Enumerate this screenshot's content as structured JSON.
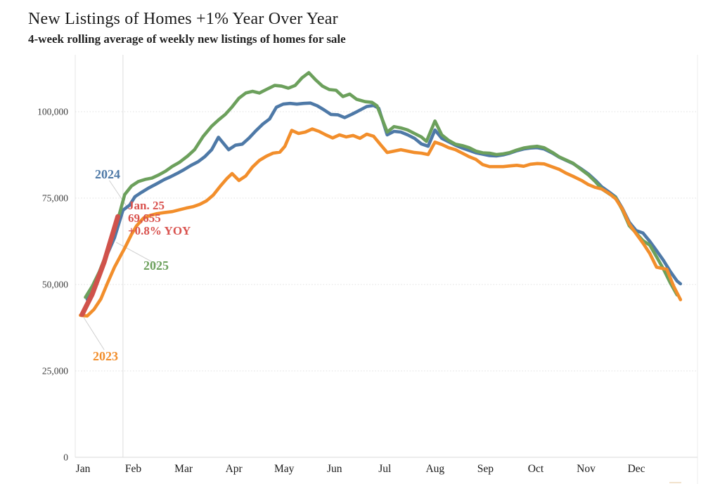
{
  "header": {
    "title": "New Listings of Homes +1% Year Over Year",
    "subtitle": "4-week rolling average of weekly new listings of homes for sale"
  },
  "chart_data": {
    "type": "line",
    "title": "New Listings of Homes +1% Year Over Year",
    "subtitle": "4-week rolling average of weekly new listings of homes for sale",
    "xlabel": "",
    "ylabel": "",
    "x_unit": "day of year",
    "ylim": [
      0,
      115000
    ],
    "grid": "horizontal-dotted",
    "y_ticks": [
      0,
      25000,
      50000,
      75000,
      100000
    ],
    "y_tick_labels": [
      "0",
      "25,000",
      "50,000",
      "75,000",
      "100,000"
    ],
    "month_labels": [
      "Jan",
      "Feb",
      "Mar",
      "Apr",
      "May",
      "Jun",
      "Jul",
      "Aug",
      "Sep",
      "Oct",
      "Nov",
      "Dec"
    ],
    "latest_marker_day": 28,
    "series": [
      {
        "name": "2024",
        "color": "#4E79A7",
        "points": [
          [
            7,
            45700
          ],
          [
            11,
            50300
          ],
          [
            15,
            54500
          ],
          [
            19,
            59000
          ],
          [
            23,
            63500
          ],
          [
            28,
            71500
          ],
          [
            32,
            73000
          ],
          [
            35,
            75400
          ],
          [
            39,
            76700
          ],
          [
            43,
            77900
          ],
          [
            48,
            79200
          ],
          [
            52,
            80300
          ],
          [
            56,
            81200
          ],
          [
            60,
            82200
          ],
          [
            64,
            83300
          ],
          [
            68,
            84500
          ],
          [
            72,
            85500
          ],
          [
            76,
            87000
          ],
          [
            80,
            89000
          ],
          [
            84,
            92600
          ],
          [
            90,
            89000
          ],
          [
            94,
            90300
          ],
          [
            98,
            90600
          ],
          [
            102,
            92400
          ],
          [
            106,
            94500
          ],
          [
            110,
            96400
          ],
          [
            114,
            97900
          ],
          [
            118,
            101300
          ],
          [
            122,
            102200
          ],
          [
            126,
            102400
          ],
          [
            130,
            102200
          ],
          [
            134,
            102400
          ],
          [
            138,
            102500
          ],
          [
            142,
            101700
          ],
          [
            146,
            100500
          ],
          [
            150,
            99200
          ],
          [
            154,
            99100
          ],
          [
            158,
            98300
          ],
          [
            162,
            99200
          ],
          [
            166,
            100200
          ],
          [
            171,
            101500
          ],
          [
            175,
            101800
          ],
          [
            178,
            101000
          ],
          [
            183,
            93300
          ],
          [
            187,
            94300
          ],
          [
            191,
            94100
          ],
          [
            195,
            93300
          ],
          [
            199,
            92300
          ],
          [
            203,
            90700
          ],
          [
            207,
            90000
          ],
          [
            211,
            94700
          ],
          [
            215,
            92300
          ],
          [
            219,
            91300
          ],
          [
            223,
            90300
          ],
          [
            227,
            89500
          ],
          [
            231,
            88800
          ],
          [
            235,
            88100
          ],
          [
            239,
            87700
          ],
          [
            243,
            87300
          ],
          [
            247,
            87200
          ],
          [
            251,
            87500
          ],
          [
            255,
            88000
          ],
          [
            259,
            88700
          ],
          [
            263,
            89200
          ],
          [
            267,
            89500
          ],
          [
            271,
            89600
          ],
          [
            275,
            89200
          ],
          [
            280,
            88000
          ],
          [
            284,
            86800
          ],
          [
            288,
            85900
          ],
          [
            292,
            85000
          ],
          [
            297,
            83400
          ],
          [
            301,
            82000
          ],
          [
            305,
            80200
          ],
          [
            309,
            78200
          ],
          [
            313,
            76800
          ],
          [
            317,
            75300
          ],
          [
            321,
            72000
          ],
          [
            325,
            68000
          ],
          [
            329,
            65600
          ],
          [
            333,
            64900
          ],
          [
            337,
            62500
          ],
          [
            341,
            59800
          ],
          [
            345,
            57000
          ],
          [
            349,
            53800
          ],
          [
            353,
            51000
          ],
          [
            355,
            50200
          ]
        ]
      },
      {
        "name": "2025",
        "color": "#6CA05C",
        "points": [
          [
            6,
            46300
          ],
          [
            10,
            49500
          ],
          [
            14,
            53500
          ],
          [
            18,
            58500
          ],
          [
            22,
            64000
          ],
          [
            26,
            70500
          ],
          [
            29,
            76000
          ],
          [
            33,
            78500
          ],
          [
            37,
            79800
          ],
          [
            41,
            80400
          ],
          [
            45,
            80800
          ],
          [
            49,
            81700
          ],
          [
            53,
            82800
          ],
          [
            57,
            84200
          ],
          [
            61,
            85300
          ],
          [
            66,
            87200
          ],
          [
            70,
            89000
          ],
          [
            75,
            92800
          ],
          [
            80,
            95800
          ],
          [
            84,
            97600
          ],
          [
            88,
            99200
          ],
          [
            92,
            101400
          ],
          [
            96,
            103900
          ],
          [
            100,
            105400
          ],
          [
            104,
            105900
          ],
          [
            108,
            105400
          ],
          [
            112,
            106400
          ],
          [
            117,
            107600
          ],
          [
            121,
            107400
          ],
          [
            125,
            106800
          ],
          [
            129,
            107600
          ],
          [
            133,
            109800
          ],
          [
            137,
            111300
          ],
          [
            141,
            109200
          ],
          [
            145,
            107400
          ],
          [
            149,
            106400
          ],
          [
            153,
            106200
          ],
          [
            157,
            104400
          ],
          [
            161,
            105100
          ],
          [
            165,
            103600
          ],
          [
            170,
            102900
          ],
          [
            174,
            102700
          ],
          [
            177,
            101700
          ],
          [
            183,
            94100
          ],
          [
            187,
            95700
          ],
          [
            191,
            95300
          ],
          [
            195,
            94700
          ],
          [
            199,
            93700
          ],
          [
            203,
            92700
          ],
          [
            206,
            91400
          ],
          [
            211,
            97300
          ],
          [
            215,
            93300
          ],
          [
            219,
            91700
          ],
          [
            223,
            90600
          ],
          [
            227,
            90200
          ],
          [
            231,
            89600
          ],
          [
            235,
            88600
          ],
          [
            239,
            88100
          ],
          [
            243,
            88000
          ],
          [
            247,
            87600
          ],
          [
            251,
            87800
          ],
          [
            255,
            88200
          ],
          [
            259,
            88900
          ],
          [
            263,
            89500
          ],
          [
            267,
            89800
          ],
          [
            271,
            90000
          ],
          [
            275,
            89600
          ],
          [
            280,
            88200
          ],
          [
            284,
            86900
          ],
          [
            288,
            86000
          ],
          [
            292,
            85100
          ],
          [
            297,
            83200
          ],
          [
            301,
            81700
          ],
          [
            305,
            79800
          ],
          [
            309,
            77600
          ],
          [
            313,
            76300
          ],
          [
            317,
            75100
          ],
          [
            321,
            71500
          ],
          [
            325,
            67000
          ],
          [
            329,
            64900
          ],
          [
            333,
            62700
          ],
          [
            337,
            61400
          ],
          [
            341,
            58000
          ],
          [
            345,
            54500
          ],
          [
            349,
            50500
          ],
          [
            353,
            47000
          ]
        ]
      },
      {
        "name": "2023",
        "color": "#F28E2B",
        "points": [
          [
            3,
            41100
          ],
          [
            7,
            40900
          ],
          [
            11,
            42800
          ],
          [
            15,
            45800
          ],
          [
            19,
            50500
          ],
          [
            23,
            55000
          ],
          [
            27,
            58700
          ],
          [
            29,
            60500
          ],
          [
            33,
            64500
          ],
          [
            36,
            67000
          ],
          [
            40,
            69200
          ],
          [
            44,
            70000
          ],
          [
            48,
            70500
          ],
          [
            52,
            70800
          ],
          [
            57,
            71100
          ],
          [
            61,
            71600
          ],
          [
            65,
            72100
          ],
          [
            69,
            72500
          ],
          [
            73,
            73200
          ],
          [
            77,
            74200
          ],
          [
            81,
            75900
          ],
          [
            85,
            78400
          ],
          [
            89,
            80700
          ],
          [
            92,
            82100
          ],
          [
            96,
            80100
          ],
          [
            100,
            81400
          ],
          [
            104,
            84000
          ],
          [
            108,
            85900
          ],
          [
            112,
            87100
          ],
          [
            116,
            88000
          ],
          [
            120,
            88300
          ],
          [
            123,
            90000
          ],
          [
            127,
            94600
          ],
          [
            131,
            93700
          ],
          [
            135,
            94100
          ],
          [
            139,
            95000
          ],
          [
            143,
            94300
          ],
          [
            147,
            93300
          ],
          [
            151,
            92400
          ],
          [
            155,
            93300
          ],
          [
            159,
            92700
          ],
          [
            163,
            93100
          ],
          [
            167,
            92300
          ],
          [
            171,
            93500
          ],
          [
            175,
            92900
          ],
          [
            179,
            90500
          ],
          [
            183,
            88200
          ],
          [
            187,
            88600
          ],
          [
            191,
            89000
          ],
          [
            195,
            88600
          ],
          [
            199,
            88200
          ],
          [
            203,
            88000
          ],
          [
            207,
            87600
          ],
          [
            211,
            91200
          ],
          [
            215,
            90500
          ],
          [
            219,
            89600
          ],
          [
            223,
            89000
          ],
          [
            227,
            88000
          ],
          [
            231,
            87000
          ],
          [
            235,
            86200
          ],
          [
            239,
            84700
          ],
          [
            243,
            84100
          ],
          [
            247,
            84100
          ],
          [
            251,
            84100
          ],
          [
            255,
            84300
          ],
          [
            259,
            84500
          ],
          [
            263,
            84200
          ],
          [
            267,
            84800
          ],
          [
            271,
            85000
          ],
          [
            275,
            84900
          ],
          [
            280,
            84000
          ],
          [
            284,
            83300
          ],
          [
            288,
            82200
          ],
          [
            292,
            81300
          ],
          [
            297,
            80100
          ],
          [
            301,
            78900
          ],
          [
            305,
            78100
          ],
          [
            309,
            77600
          ],
          [
            313,
            76400
          ],
          [
            317,
            74800
          ],
          [
            321,
            71800
          ],
          [
            325,
            67500
          ],
          [
            329,
            64700
          ],
          [
            333,
            62000
          ],
          [
            337,
            59000
          ],
          [
            341,
            55000
          ],
          [
            344,
            54700
          ],
          [
            347,
            54400
          ],
          [
            351,
            49500
          ],
          [
            355,
            45600
          ]
        ]
      },
      {
        "name": "2025-latest",
        "color": "#D0524B",
        "width": 7,
        "points": [
          [
            4,
            41300
          ],
          [
            10,
            47200
          ],
          [
            17,
            56500
          ],
          [
            25,
            69655
          ]
        ]
      }
    ],
    "annotations": {
      "callout": {
        "color": "#D9534F",
        "lines": [
          "Jan. 25",
          "69,655",
          "+0.8% YOY"
        ]
      },
      "year_labels": [
        {
          "text": "2024",
          "color": "#4E79A7",
          "leader": {
            "from_day": 20,
            "from_value": 80100,
            "to_day": 31,
            "to_value": 72000
          }
        },
        {
          "text": "2025",
          "color": "#6CA05C",
          "leader": {
            "from_day": 24,
            "from_value": 62200,
            "to_day": 49,
            "to_value": 55500
          }
        },
        {
          "text": "2023",
          "color": "#F28E2B",
          "leader": {
            "from_day": 5,
            "from_value": 40450,
            "to_day": 17,
            "to_value": 31100
          }
        }
      ]
    }
  }
}
